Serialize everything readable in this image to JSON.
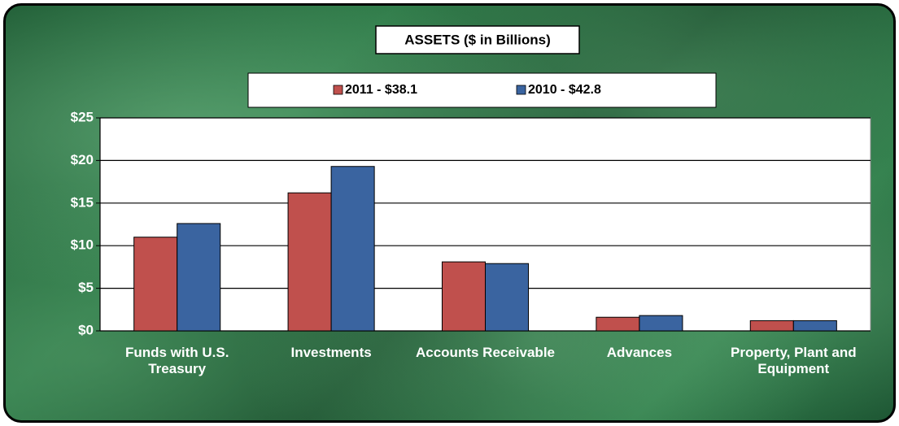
{
  "chart_data": {
    "type": "bar",
    "title": "ASSETS ($ in Billions)",
    "categories": [
      "Funds with U.S. Treasury",
      "Investments",
      "Accounts Receivable",
      "Advances",
      "Property, Plant and Equipment"
    ],
    "series": [
      {
        "name": "2011 - $38.1",
        "color": "#c0504d",
        "values": [
          11.0,
          16.2,
          8.1,
          1.6,
          1.2
        ]
      },
      {
        "name": "2010 - $42.8",
        "color": "#3a64a0",
        "values": [
          12.6,
          19.3,
          7.9,
          1.8,
          1.2
        ]
      }
    ],
    "ylim": [
      0,
      25
    ],
    "yticks": [
      {
        "value": 0,
        "label": "$0"
      },
      {
        "value": 5,
        "label": "$5"
      },
      {
        "value": 10,
        "label": "$10"
      },
      {
        "value": 15,
        "label": "$15"
      },
      {
        "value": 20,
        "label": "$20"
      },
      {
        "value": 25,
        "label": "$25"
      }
    ],
    "grid": true,
    "legend": "top"
  }
}
